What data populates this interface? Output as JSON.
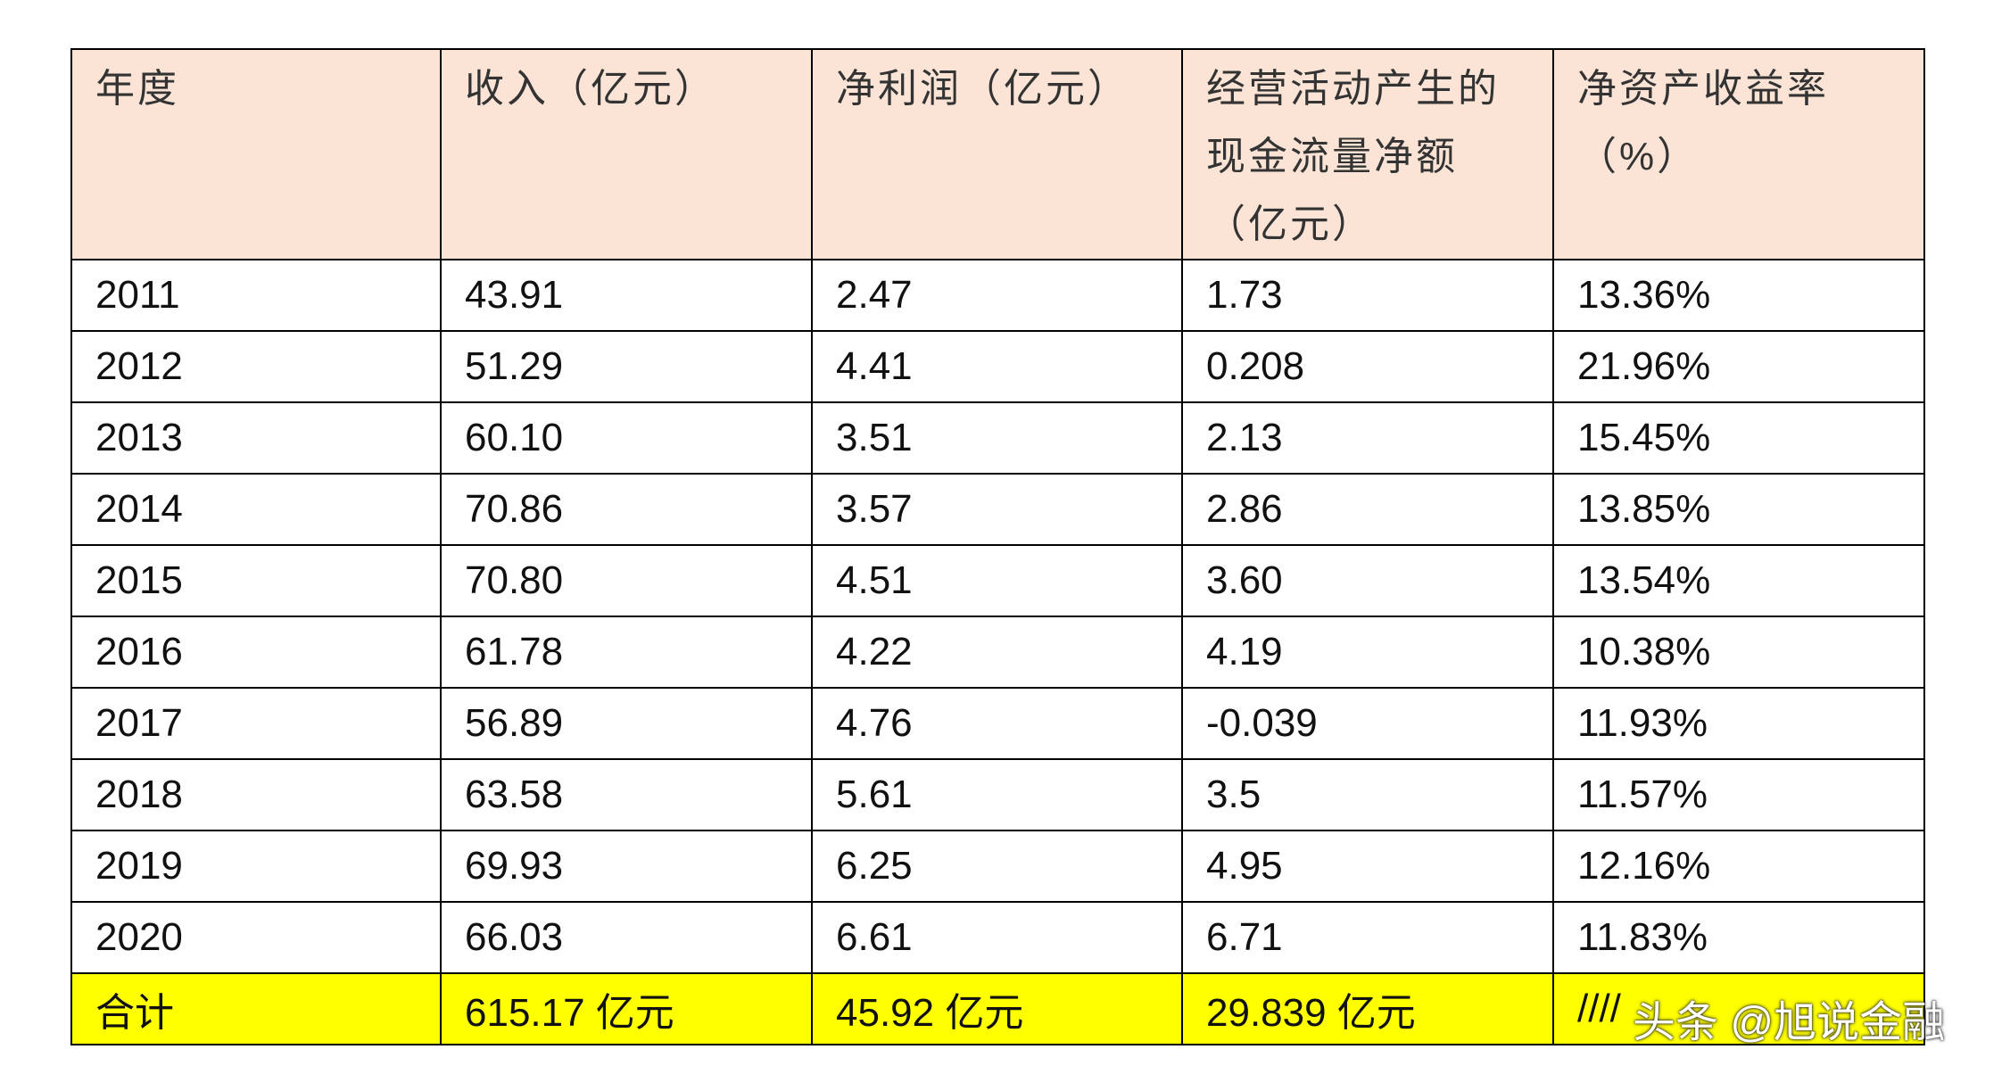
{
  "table": {
    "header": [
      "年度",
      "收入（亿元）",
      "净利润（亿元）",
      "经营活动产生的现金流量净额（亿元）",
      "净资产收益率（%）"
    ],
    "rows": [
      [
        "2011",
        "43.91",
        "2.47",
        "1.73",
        "13.36%"
      ],
      [
        "2012",
        "51.29",
        "4.41",
        "0.208",
        "21.96%"
      ],
      [
        "2013",
        "60.10",
        "3.51",
        "2.13",
        "15.45%"
      ],
      [
        "2014",
        "70.86",
        "3.57",
        "2.86",
        "13.85%"
      ],
      [
        "2015",
        "70.80",
        "4.51",
        "3.60",
        "13.54%"
      ],
      [
        "2016",
        "61.78",
        "4.22",
        "4.19",
        "10.38%"
      ],
      [
        "2017",
        "56.89",
        "4.76",
        "-0.039",
        "11.93%"
      ],
      [
        "2018",
        "63.58",
        "5.61",
        "3.5",
        "11.57%"
      ],
      [
        "2019",
        "69.93",
        "6.25",
        "4.95",
        "12.16%"
      ],
      [
        "2020",
        "66.03",
        "6.61",
        "6.71",
        "11.83%"
      ]
    ],
    "total": [
      "合计",
      "615.17 亿元",
      "45.92 亿元",
      "29.839 亿元",
      "////"
    ]
  },
  "watermark": "头条 @旭说金融"
}
